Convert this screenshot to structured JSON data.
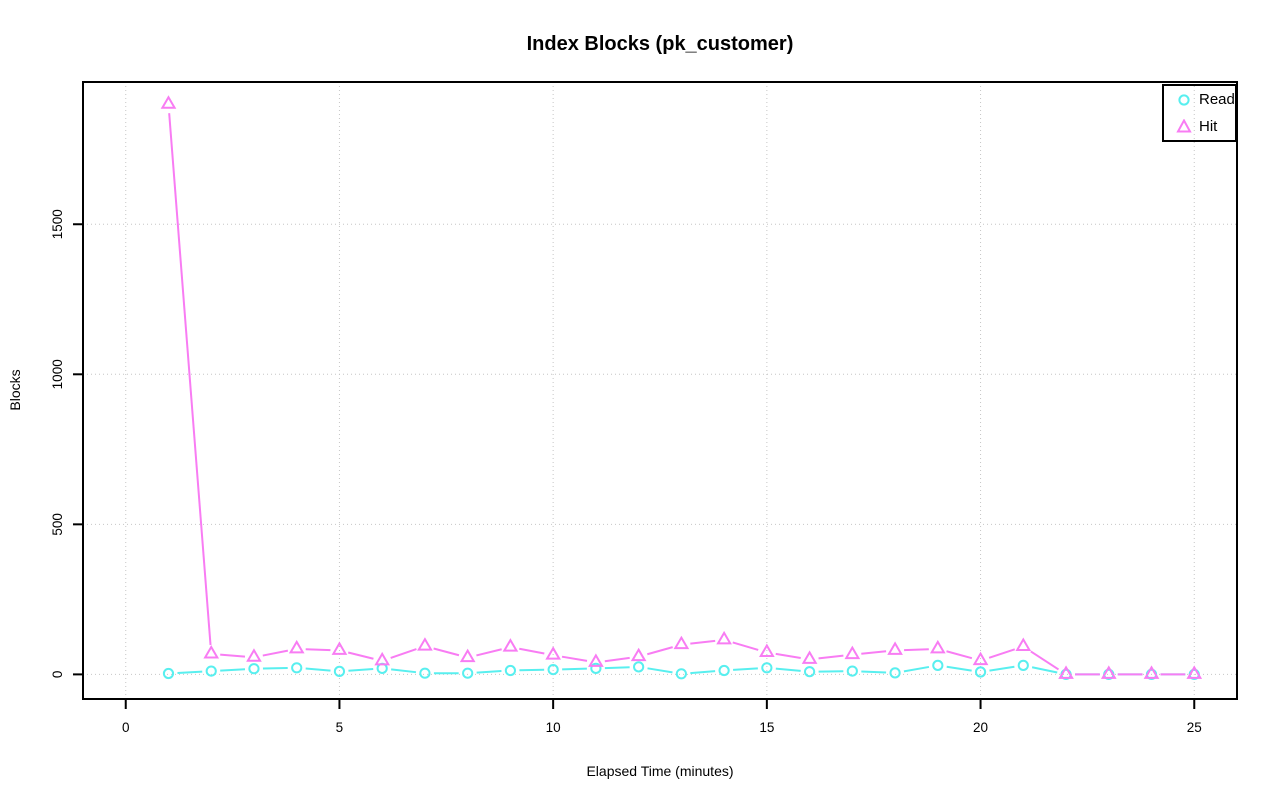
{
  "page": {
    "background": "#ffffff"
  },
  "chart_data": {
    "type": "line",
    "title": "Index Blocks (pk_customer)",
    "xlabel": "Elapsed Time (minutes)",
    "ylabel": "Blocks",
    "x": [
      1,
      2,
      3,
      4,
      5,
      6,
      7,
      8,
      9,
      10,
      11,
      12,
      13,
      14,
      15,
      16,
      17,
      18,
      19,
      20,
      21,
      22,
      23,
      24,
      25
    ],
    "series": [
      {
        "name": "Read",
        "marker": "circle",
        "color": "#58efef",
        "values": [
          3,
          11,
          19,
          22,
          10,
          20,
          4,
          4,
          13,
          16,
          20,
          25,
          2,
          13,
          22,
          9,
          11,
          5,
          30,
          8,
          30,
          0,
          0,
          0,
          0
        ]
      },
      {
        "name": "Hit",
        "marker": "triangle",
        "color": "#f87cf3",
        "values": [
          1900,
          68,
          57,
          85,
          80,
          45,
          94,
          56,
          91,
          64,
          40,
          59,
          99,
          115,
          73,
          50,
          66,
          80,
          85,
          46,
          93,
          0,
          0,
          0,
          0
        ]
      }
    ],
    "xlim": [
      -1,
      26
    ],
    "ylim": [
      -82,
      1974
    ],
    "xticks": [
      0,
      5,
      10,
      15,
      20,
      25
    ],
    "yticks": [
      0,
      500,
      1000,
      1500
    ],
    "grid": "dotted",
    "grid_color": "#c6c6c6",
    "axis_color": "#000000",
    "legend": {
      "position": "topright",
      "entries": [
        "Read",
        "Hit"
      ]
    }
  }
}
